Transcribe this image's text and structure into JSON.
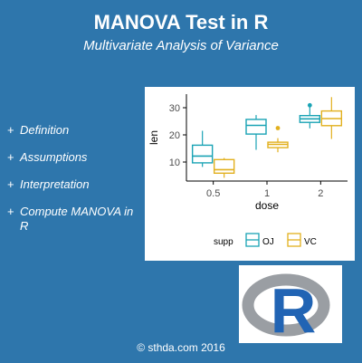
{
  "header": {
    "title": "MANOVA Test in R",
    "subtitle": "Multivariate Analysis of Variance"
  },
  "topics": [
    {
      "bullet": "+",
      "label": "Definition"
    },
    {
      "bullet": "+",
      "label": "Assumptions"
    },
    {
      "bullet": "+",
      "label": "Interpretation"
    },
    {
      "bullet": "+",
      "label": "Compute MANOVA in R"
    }
  ],
  "logo": {
    "letter": "R",
    "icon": "r-logo-icon"
  },
  "footer": {
    "copyright": "© sthda.com 2016"
  },
  "colors": {
    "background": "#2e76ac",
    "OJ": "#1aa3b5",
    "VC": "#e2b01e",
    "logo_ring": "#9a9ea3",
    "logo_letter": "#2164b4"
  },
  "chart_data": {
    "type": "boxplot",
    "xlabel": "dose",
    "ylabel": "len",
    "categories": [
      "0.5",
      "1",
      "2"
    ],
    "yticks": [
      10,
      20,
      30
    ],
    "ylim": [
      3,
      35
    ],
    "grid": false,
    "legend": {
      "title": "supp",
      "position": "bottom"
    },
    "series": [
      {
        "name": "OJ",
        "color": "#1aa3b5",
        "boxes": [
          {
            "category": "0.5",
            "min": 8.2,
            "q1": 9.7,
            "median": 12.2,
            "q3": 16.2,
            "max": 21.5,
            "outliers": []
          },
          {
            "category": "1",
            "min": 14.5,
            "q1": 20.3,
            "median": 23.5,
            "q3": 25.7,
            "max": 27.3,
            "outliers": []
          },
          {
            "category": "2",
            "min": 22.4,
            "q1": 24.6,
            "median": 25.9,
            "q3": 27.1,
            "max": 30.9,
            "outliers": [
              30.9
            ]
          }
        ]
      },
      {
        "name": "VC",
        "color": "#e2b01e",
        "boxes": [
          {
            "category": "0.5",
            "min": 4.2,
            "q1": 5.9,
            "median": 7.2,
            "q3": 10.9,
            "max": 11.5,
            "outliers": []
          },
          {
            "category": "1",
            "min": 13.6,
            "q1": 15.3,
            "median": 16.5,
            "q3": 17.3,
            "max": 18.8,
            "outliers": [
              22.5
            ]
          },
          {
            "category": "2",
            "min": 18.5,
            "q1": 23.4,
            "median": 26.0,
            "q3": 28.8,
            "max": 33.9,
            "outliers": []
          }
        ]
      }
    ]
  }
}
